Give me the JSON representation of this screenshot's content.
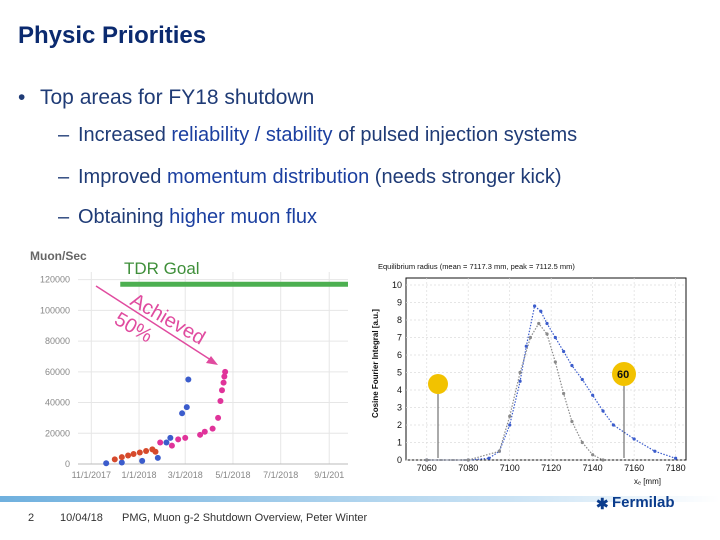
{
  "slide": {
    "title": "Physic Priorities",
    "bullet": {
      "marker": "•",
      "text": "Top areas for FY18 shutdown"
    },
    "subbullets": [
      {
        "dash": "–",
        "pre": "Increased ",
        "hl": "reliability / stability",
        "post": " of pulsed injection systems"
      },
      {
        "dash": "–",
        "pre": "Improved ",
        "hl": "momentum distribution",
        "post": " (needs stronger kick)"
      },
      {
        "dash": "–",
        "pre": "Obtaining ",
        "hl": "higher muon flux",
        "post": ""
      }
    ]
  },
  "colors": {
    "title": "#0b2a6f",
    "text": "#1f3b76",
    "goal_line": "#4caf50",
    "annotation": "#e04b9f",
    "series_blue": "#3b5ccc",
    "series_red": "#d64a2c",
    "series_magenta": "#e0339a"
  },
  "muon_chart": {
    "ylabel": "Muon/Sec",
    "goal_label": "TDR Goal",
    "achieved_label": "Achieved",
    "percent_label": "50%"
  },
  "radius_chart": {
    "caption": "Equilibrium radius (mean = 7117.3 mm, peak = 7112.5 mm)",
    "ylabel": "Cosine Fourier Integral [a.u.]",
    "xlabel": "xₑ [mm]",
    "badge": "60"
  },
  "chart_data": [
    {
      "type": "scatter",
      "title": "",
      "ylabel": "Muon/Sec",
      "xlabel": "",
      "x_tick_labels": [
        "11/1/2017",
        "1/1/2018",
        "3/1/2018",
        "5/1/2018",
        "7/1/2018",
        "9/1/201"
      ],
      "x_tick_dates": [
        "2017-11-01",
        "2018-01-01",
        "2018-03-01",
        "2018-05-01",
        "2018-07-01",
        "2018-09-01"
      ],
      "y_ticks": [
        0,
        20000,
        40000,
        60000,
        80000,
        100000,
        120000
      ],
      "xlim": [
        "2017-10-15",
        "2018-09-25"
      ],
      "ylim": [
        0,
        125000
      ],
      "grid": true,
      "goal_value": 117000,
      "series": [
        {
          "color": "#3b5ccc",
          "points": [
            [
              "2017-11-20",
              500
            ],
            [
              "2017-12-10",
              1000
            ],
            [
              "2018-01-05",
              2000
            ],
            [
              "2018-01-25",
              4000
            ],
            [
              "2018-02-05",
              14000
            ],
            [
              "2018-02-10",
              17000
            ],
            [
              "2018-02-25",
              33000
            ],
            [
              "2018-03-03",
              37000
            ],
            [
              "2018-03-05",
              55000
            ]
          ]
        },
        {
          "color": "#d64a2c",
          "points": [
            [
              "2017-12-01",
              3000
            ],
            [
              "2017-12-10",
              4500
            ],
            [
              "2017-12-18",
              5500
            ],
            [
              "2017-12-25",
              6500
            ],
            [
              "2018-01-02",
              7500
            ],
            [
              "2018-01-10",
              8500
            ],
            [
              "2018-01-18",
              9500
            ],
            [
              "2018-01-22",
              8000
            ]
          ]
        },
        {
          "color": "#e0339a",
          "points": [
            [
              "2018-01-28",
              14000
            ],
            [
              "2018-02-12",
              12000
            ],
            [
              "2018-02-20",
              16000
            ],
            [
              "2018-03-01",
              17000
            ],
            [
              "2018-03-20",
              19000
            ],
            [
              "2018-03-26",
              21000
            ],
            [
              "2018-04-05",
              23000
            ],
            [
              "2018-04-12",
              30000
            ],
            [
              "2018-04-15",
              41000
            ],
            [
              "2018-04-17",
              48000
            ],
            [
              "2018-04-19",
              53000
            ],
            [
              "2018-04-20",
              57000
            ],
            [
              "2018-04-21",
              60000
            ]
          ]
        }
      ]
    },
    {
      "type": "line",
      "title": "Equilibrium radius (mean = 7117.3 mm, peak = 7112.5 mm)",
      "xlabel": "xₑ [mm]",
      "ylabel": "Cosine Fourier Integral [a.u.]",
      "x_ticks": [
        7060,
        7080,
        7100,
        7120,
        7140,
        7160,
        7180
      ],
      "y_ticks": [
        0,
        1,
        2,
        3,
        4,
        5,
        6,
        7,
        8,
        9,
        10
      ],
      "xlim": [
        7050,
        7185
      ],
      "ylim": [
        0,
        10.4
      ],
      "grid": true,
      "series": [
        {
          "color": "#3b5ccc",
          "x": [
            7060,
            7080,
            7090,
            7095,
            7100,
            7105,
            7108,
            7112,
            7115,
            7118,
            7122,
            7126,
            7130,
            7135,
            7140,
            7145,
            7150,
            7160,
            7170,
            7180
          ],
          "y": [
            0,
            0,
            0.1,
            0.5,
            2.0,
            4.5,
            6.5,
            8.8,
            8.5,
            7.8,
            7.0,
            6.2,
            5.4,
            4.6,
            3.7,
            2.8,
            2.0,
            1.2,
            0.5,
            0.1
          ]
        },
        {
          "color": "#8a8a8a",
          "x": [
            7060,
            7080,
            7095,
            7100,
            7105,
            7110,
            7114,
            7118,
            7122,
            7126,
            7130,
            7135,
            7140,
            7145
          ],
          "y": [
            0,
            0,
            0.5,
            2.5,
            5.0,
            7.0,
            7.8,
            7.2,
            5.6,
            3.8,
            2.2,
            1.0,
            0.3,
            0
          ]
        }
      ]
    }
  ],
  "footer": {
    "page": "2",
    "date": "10/04/18",
    "text": "PMG, Muon g-2 Shutdown Overview, Peter Winter",
    "logo": "Fermilab"
  }
}
